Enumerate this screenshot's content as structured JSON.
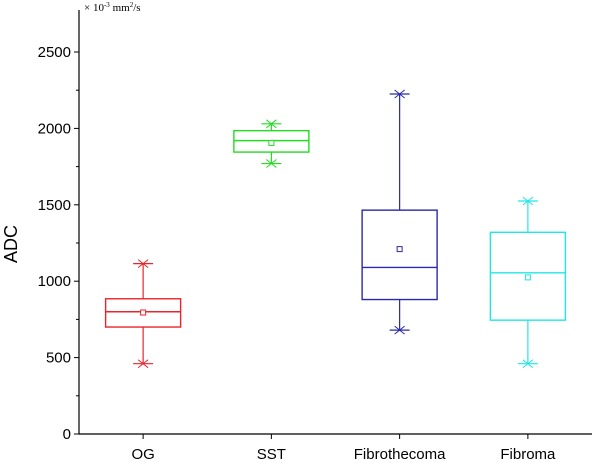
{
  "chart_data": {
    "type": "boxplot",
    "title": "",
    "xlabel": "",
    "ylabel": "ADC",
    "unit": {
      "prefix": "× 10",
      "exponent": "-3",
      "middle": " mm",
      "exponent2": "2",
      "suffix": "/s"
    },
    "ylim": [
      0,
      2750
    ],
    "yticks": [
      0,
      500,
      1000,
      1500,
      2000,
      2500
    ],
    "grid": false,
    "categories": [
      "OG",
      "SST",
      "Fibrothecoma",
      "Fibroma"
    ],
    "series": [
      {
        "category": "OG",
        "color": "#e8252c",
        "min": 460,
        "q1": 700,
        "median": 800,
        "q3": 885,
        "max": 1115,
        "mean": 795
      },
      {
        "category": "SST",
        "color": "#22dd22",
        "min": 1770,
        "q1": 1845,
        "median": 1920,
        "q3": 1985,
        "max": 2030,
        "mean": 1905
      },
      {
        "category": "Fibrothecoma",
        "color": "#2a2aa8",
        "min": 680,
        "q1": 880,
        "median": 1090,
        "q3": 1465,
        "max": 2225,
        "mean": 1210
      },
      {
        "category": "Fibroma",
        "color": "#22e6e6",
        "min": 460,
        "q1": 745,
        "median": 1055,
        "q3": 1320,
        "max": 1525,
        "mean": 1025
      }
    ]
  }
}
